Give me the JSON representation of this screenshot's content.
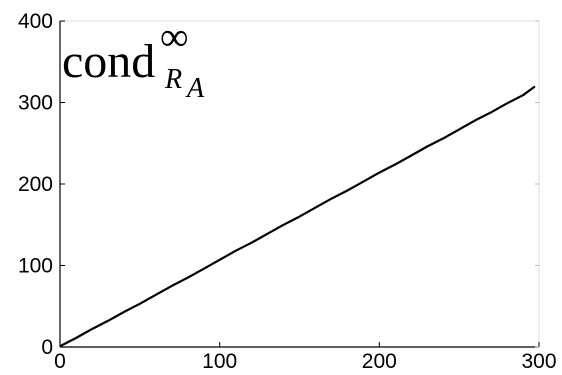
{
  "chart_data": {
    "type": "line",
    "title": "",
    "xlabel": "",
    "ylabel": "",
    "xlim": [
      0,
      300
    ],
    "ylim": [
      0,
      400
    ],
    "xticks": [
      0,
      100,
      200,
      300
    ],
    "yticks": [
      0,
      100,
      200,
      300,
      400
    ],
    "xtick_labels": [
      "0",
      "100",
      "200",
      "300"
    ],
    "ytick_labels": [
      "0",
      "100",
      "200",
      "300",
      "400"
    ],
    "grid": false,
    "legend": "none",
    "annotation": {
      "base": "cond",
      "superscript": "∞",
      "subscript": "R",
      "sub_subscript": "A",
      "placement": "top-left"
    },
    "series": [
      {
        "color": "#000000",
        "x": [
          1,
          10,
          20,
          30,
          40,
          50,
          60,
          70,
          80,
          90,
          100,
          110,
          120,
          130,
          140,
          150,
          160,
          170,
          180,
          190,
          200,
          210,
          220,
          230,
          240,
          250,
          260,
          270,
          280,
          290,
          297
        ],
        "y": [
          2,
          11,
          22,
          32,
          43,
          53,
          64,
          75,
          85,
          96,
          107,
          118,
          128,
          139,
          150,
          160,
          171,
          182,
          192,
          203,
          214,
          224,
          235,
          246,
          256,
          267,
          278,
          288,
          299,
          309,
          319
        ]
      }
    ]
  }
}
